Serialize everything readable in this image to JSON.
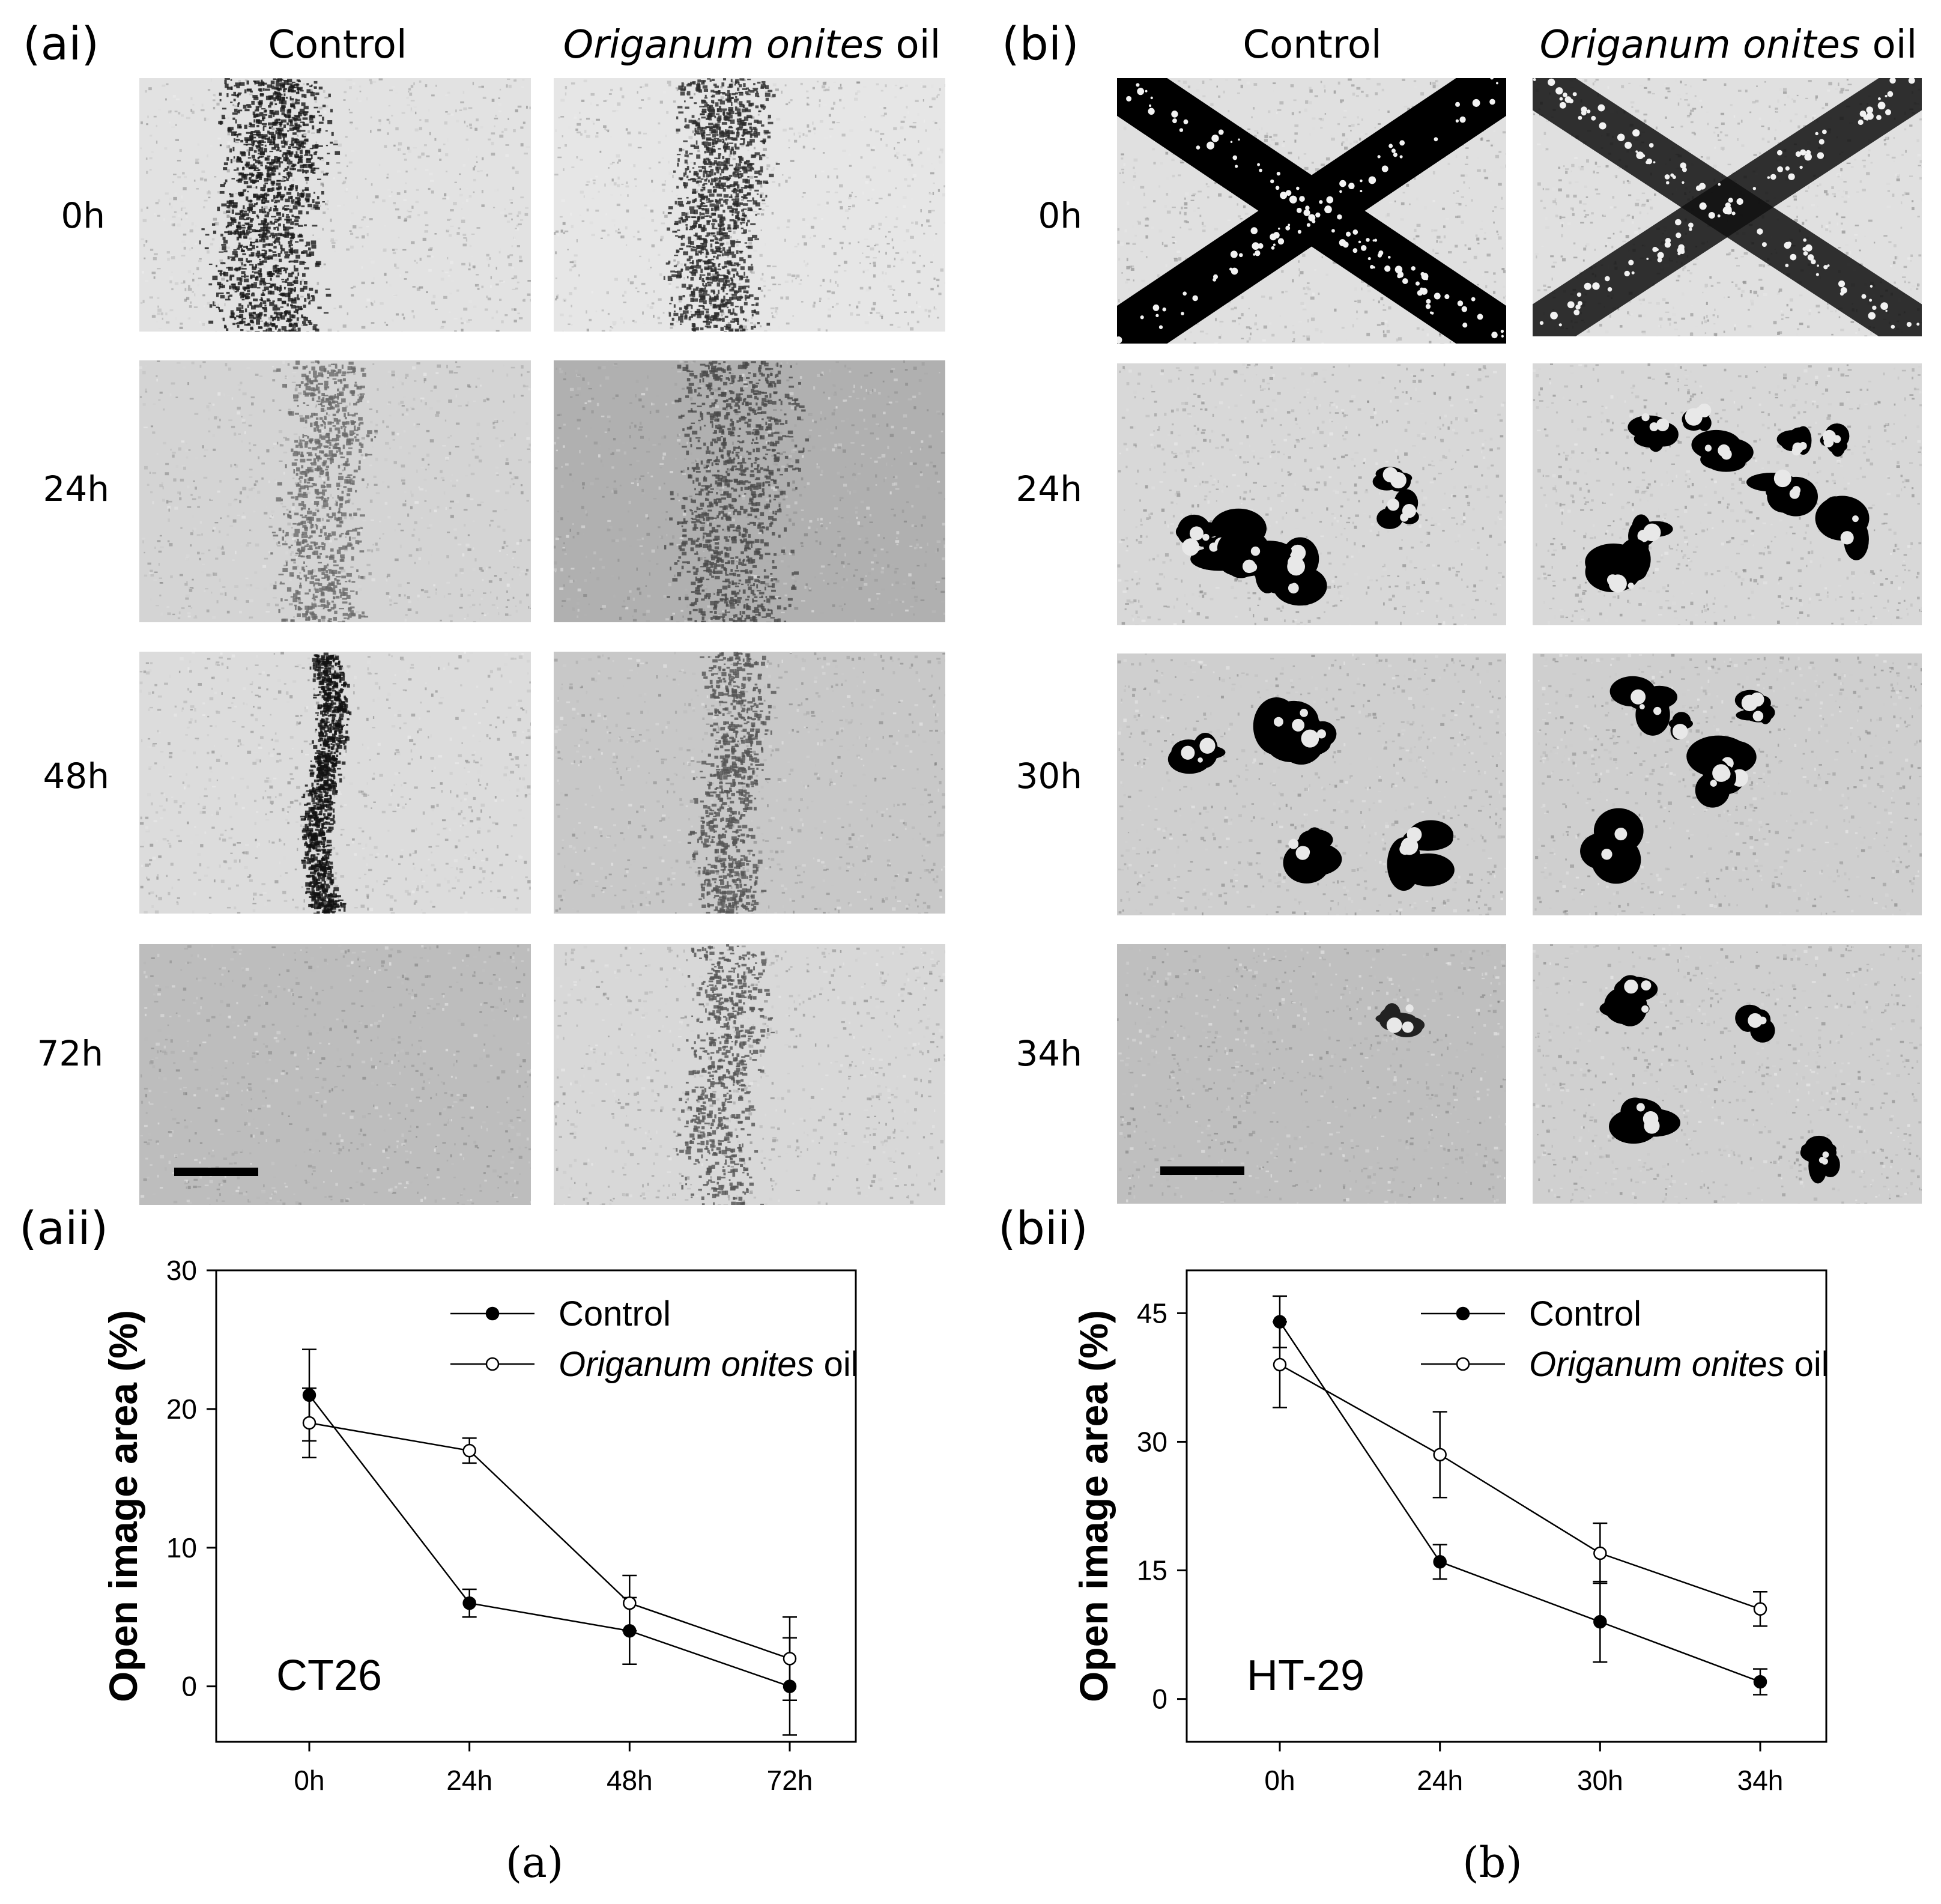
{
  "panel_labels": {
    "ai": "(ai)",
    "bi": "(bi)",
    "aii": "(aii)",
    "bii": "(bii)",
    "a": "(a)",
    "b": "(b)"
  },
  "columns": {
    "control": "Control",
    "treatment_italic": "Origanum onites",
    "treatment_suffix": " oil"
  },
  "rows_a": [
    "0h",
    "24h",
    "48h",
    "72h"
  ],
  "rows_b": [
    "0h",
    "24h",
    "30h",
    "34h"
  ],
  "chart_data": [
    {
      "type": "line",
      "annotation": "CT26",
      "ylabel": "Open image area (%)",
      "xlabel": "",
      "categories": [
        "0h",
        "24h",
        "48h",
        "72h"
      ],
      "yticks": [
        0,
        10,
        20,
        30
      ],
      "ylim": [
        -4,
        30
      ],
      "legend_position": "top-right",
      "series": [
        {
          "name": "Control",
          "marker": "filled",
          "values": [
            21,
            6,
            4,
            0
          ],
          "errors": [
            3.3,
            1.0,
            2.4,
            3.5
          ]
        },
        {
          "name": "Origanum onites oil",
          "marker": "open",
          "values": [
            19,
            17,
            6,
            2
          ],
          "errors": [
            2.5,
            0.9,
            2.0,
            3.0
          ]
        }
      ]
    },
    {
      "type": "line",
      "annotation": "HT-29",
      "ylabel": "Open image area (%)",
      "xlabel": "",
      "categories": [
        "0h",
        "24h",
        "30h",
        "34h"
      ],
      "yticks": [
        0,
        15,
        30,
        45
      ],
      "ylim": [
        -5,
        50
      ],
      "legend_position": "top-right",
      "series": [
        {
          "name": "Control",
          "marker": "filled",
          "values": [
            44,
            16,
            9,
            2
          ],
          "errors": [
            3.0,
            2.0,
            4.7,
            1.5
          ]
        },
        {
          "name": "Origanum onites oil",
          "marker": "open",
          "values": [
            39,
            28.5,
            17,
            10.5
          ],
          "errors": [
            5.0,
            5.0,
            3.5,
            2.0
          ]
        }
      ]
    }
  ]
}
